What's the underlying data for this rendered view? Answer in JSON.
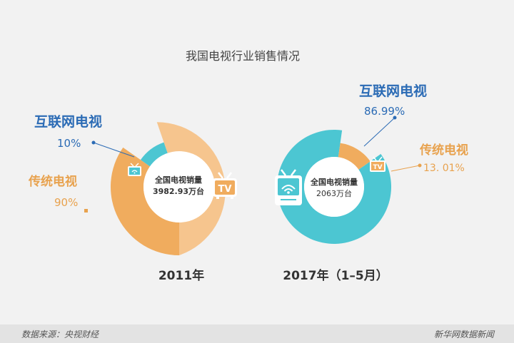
{
  "chart_data": {
    "type": "pie",
    "title": "我国电视行业销售情况",
    "colors": {
      "internet": "#4cc6d2",
      "traditional": "#f0ac5e",
      "label_internet": "#2b6bb5",
      "label_traditional": "#e8a24e",
      "ring_light": "#f6c58e",
      "center_text": "#333333",
      "year_text": "#333333"
    },
    "charts": [
      {
        "year_label": "2011年",
        "center_line1": "全国电视销量",
        "center_line2": "3982.93万台",
        "series": [
          {
            "name": "互联网电视",
            "value": 10,
            "value_label": "10%"
          },
          {
            "name": "传统电视",
            "value": 90,
            "value_label": "90%"
          }
        ]
      },
      {
        "year_label": "2017年（1–5月）",
        "center_line1": "全国电视销量",
        "center_line2": "2063万台",
        "series": [
          {
            "name": "互联网电视",
            "value": 86.99,
            "value_label": "86.99%"
          },
          {
            "name": "传统电视",
            "value": 13.01,
            "value_label": "13. 01%"
          }
        ]
      }
    ],
    "icons": [
      "tv-icon",
      "smart-tv-wifi-icon"
    ]
  },
  "footer": {
    "source": "数据来源：央视财经",
    "brand": "新华网数据新闻"
  }
}
